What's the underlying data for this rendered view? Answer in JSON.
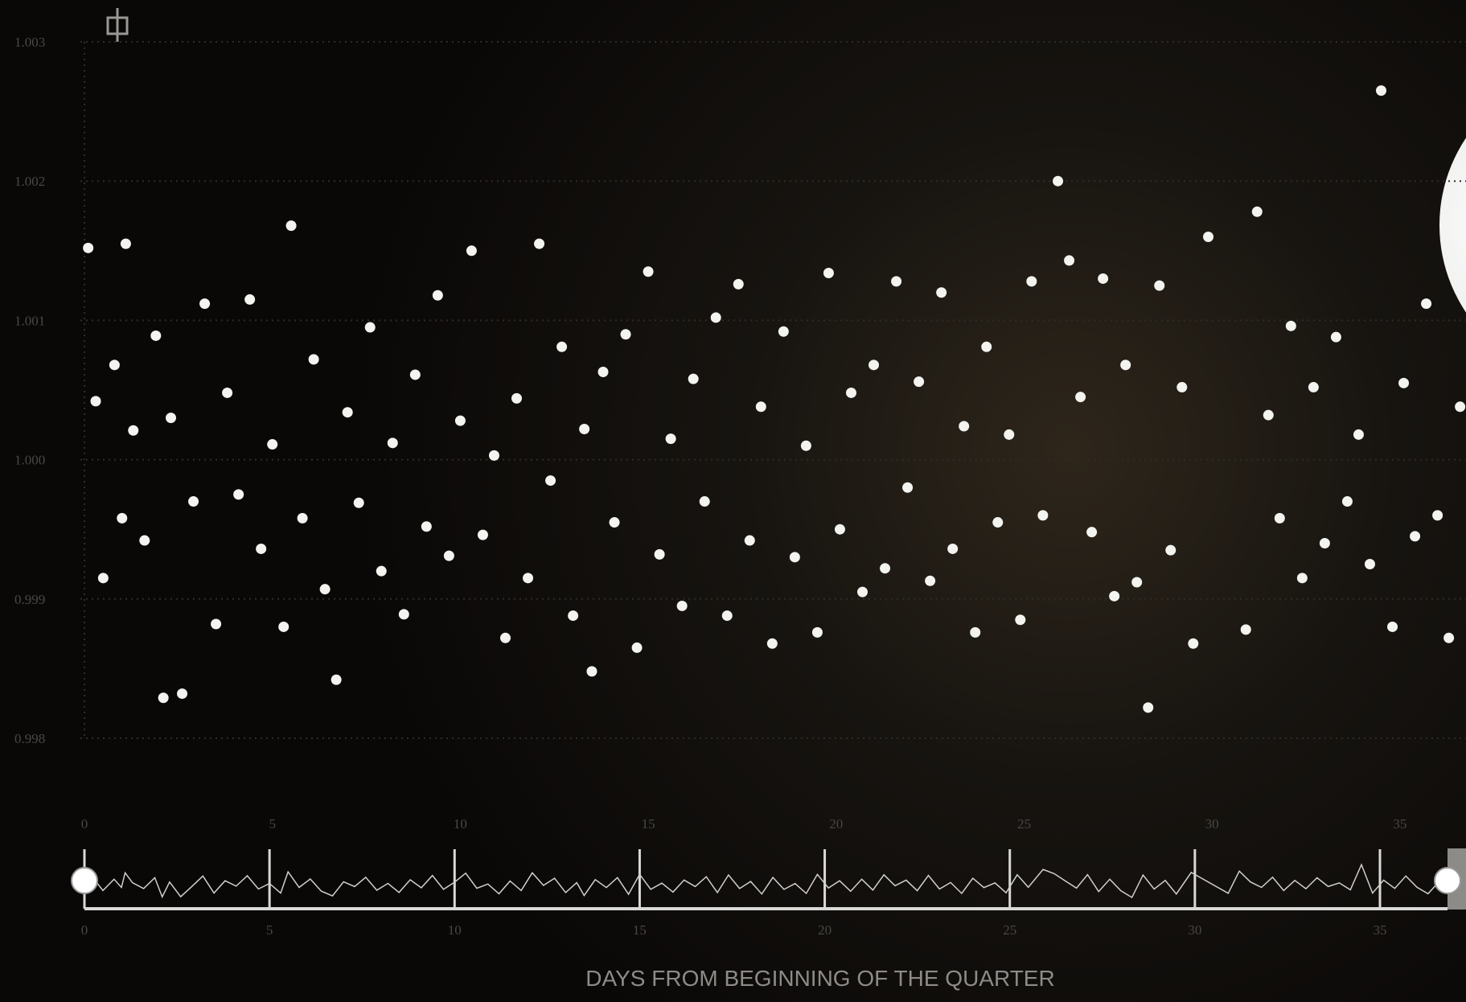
{
  "chart_data": {
    "type": "scatter",
    "xlabel": "DAYS FROM BEGINNING OF THE QUARTER",
    "x": [
      0.1,
      0.3,
      0.5,
      0.8,
      1.0,
      1.1,
      1.3,
      1.6,
      1.9,
      2.1,
      2.3,
      2.6,
      2.9,
      3.2,
      3.5,
      3.8,
      4.1,
      4.4,
      4.7,
      5.0,
      5.3,
      5.5,
      5.8,
      6.1,
      6.4,
      6.7,
      7.0,
      7.3,
      7.6,
      7.9,
      8.2,
      8.5,
      8.8,
      9.1,
      9.4,
      9.7,
      10.0,
      10.3,
      10.6,
      10.9,
      11.2,
      11.5,
      11.8,
      12.1,
      12.4,
      12.7,
      13.0,
      13.3,
      13.5,
      13.8,
      14.1,
      14.4,
      14.7,
      15.0,
      15.3,
      15.6,
      15.9,
      16.2,
      16.5,
      16.8,
      17.1,
      17.4,
      17.7,
      18.0,
      18.3,
      18.6,
      18.9,
      19.2,
      19.5,
      19.8,
      20.1,
      20.4,
      20.7,
      21.0,
      21.3,
      21.6,
      21.9,
      22.2,
      22.5,
      22.8,
      23.1,
      23.4,
      23.7,
      24.0,
      24.3,
      24.6,
      24.9,
      25.2,
      25.5,
      25.9,
      26.2,
      26.5,
      26.8,
      27.1,
      27.4,
      27.7,
      28.0,
      28.3,
      28.6,
      28.9,
      29.2,
      29.5,
      29.9,
      30.9,
      31.2,
      31.5,
      31.8,
      32.1,
      32.4,
      32.7,
      33.0,
      33.3,
      33.6,
      33.9,
      34.2,
      34.5,
      34.8,
      35.1,
      35.4,
      35.7,
      36.0,
      36.3,
      36.6
    ],
    "values": [
      1.00152,
      1.00042,
      0.99915,
      1.00068,
      0.99958,
      1.00155,
      1.00021,
      0.99942,
      1.00089,
      0.99829,
      1.0003,
      0.99832,
      0.9997,
      1.00112,
      0.99882,
      1.00048,
      0.99975,
      1.00115,
      0.99936,
      1.00011,
      0.9988,
      1.00168,
      0.99958,
      1.00072,
      0.99907,
      0.99842,
      1.00034,
      0.99969,
      1.00095,
      0.9992,
      1.00012,
      0.99889,
      1.00061,
      0.99952,
      1.00118,
      0.99931,
      1.00028,
      1.0015,
      0.99946,
      1.00003,
      0.99872,
      1.00044,
      0.99915,
      1.00155,
      0.99985,
      1.00081,
      0.99888,
      1.00022,
      0.99848,
      1.00063,
      0.99955,
      1.0009,
      0.99865,
      1.00135,
      0.99932,
      1.00015,
      0.99895,
      1.00058,
      0.9997,
      1.00102,
      0.99888,
      1.00126,
      0.99942,
      1.00038,
      0.99868,
      1.00092,
      0.9993,
      1.0001,
      0.99876,
      1.00134,
      0.9995,
      1.00048,
      0.99905,
      1.00068,
      0.99922,
      1.00128,
      0.9998,
      1.00056,
      0.99913,
      1.0012,
      0.99936,
      1.00024,
      0.99876,
      1.00081,
      0.99955,
      1.00018,
      0.99885,
      1.00128,
      0.9996,
      1.002,
      1.00143,
      1.00045,
      0.99948,
      1.0013,
      0.99902,
      1.00068,
      0.99912,
      0.99822,
      1.00125,
      0.99935,
      1.00052,
      0.99868,
      1.0016,
      0.99878,
      1.00178,
      1.00032,
      0.99958,
      1.00096,
      0.99915,
      1.00052,
      0.9994,
      1.00088,
      0.9997,
      1.00018,
      0.99925,
      1.00265,
      0.9988,
      1.00055,
      0.99945,
      1.00112,
      0.9996,
      0.99872,
      1.00038
    ],
    "color": "#f3f3ef",
    "xlim": [
      0,
      36.8
    ],
    "ylim": [
      0.998,
      1.003
    ],
    "xticks": [
      0,
      5,
      10,
      15,
      20,
      25,
      30,
      35
    ],
    "yticks": [
      0.998,
      0.999,
      {
        "value": 1,
        "label": "1.000"
      },
      1.001,
      1.002,
      1.003
    ],
    "grid": true
  }
}
